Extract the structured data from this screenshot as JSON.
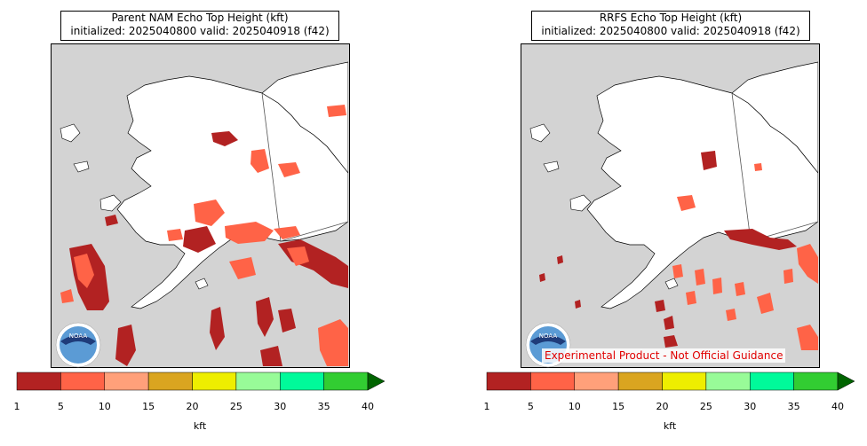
{
  "panels": [
    {
      "title_line1": "Parent NAM Echo Top Height (kft)",
      "title_line2": "initialized: 2025040800 valid: 2025040918 (f42)"
    },
    {
      "title_line1": "RRFS Echo Top Height (kft)",
      "title_line2": "initialized: 2025040800 valid: 2025040918 (f42)",
      "disclaimer": "Experimental Product - Not Official Guidance"
    }
  ],
  "colorbar": {
    "ticks": [
      "1",
      "5",
      "10",
      "15",
      "20",
      "25",
      "30",
      "35",
      "40"
    ],
    "unit": "kft",
    "colors": [
      "#b22222",
      "#ff6347",
      "#ffa07a",
      "#daa520",
      "#eeee00",
      "#98fb98",
      "#00fa9a",
      "#32cd32"
    ],
    "extend_color": "#006400"
  },
  "logo": {
    "text": "NOAA"
  },
  "colors": {
    "land": "#ffffff",
    "ocean": "#d3d3d3"
  }
}
